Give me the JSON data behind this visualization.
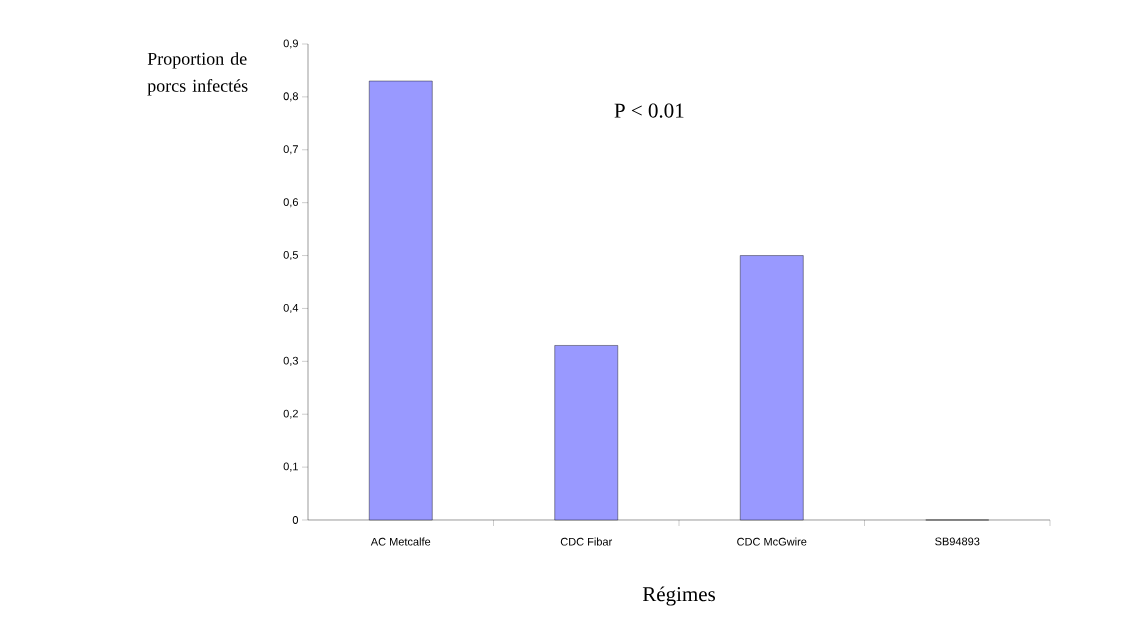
{
  "chart_data": {
    "type": "bar",
    "ylabel": "Proportion de porcs infectés",
    "xlabel": "Régimes",
    "annotations": [
      "P < 0.01"
    ],
    "categories": [
      "AC Metcalfe",
      "CDC Fibar",
      "CDC McGwire",
      "SB94893"
    ],
    "values": [
      0.83,
      0.33,
      0.5,
      0
    ],
    "color": "#9999ff",
    "ylim": [
      0,
      0.9
    ],
    "yticks": [
      0,
      {
        "value": 0.1,
        "label": "0,1"
      },
      {
        "value": 0.2,
        "label": "0,2"
      },
      {
        "value": 0.3,
        "label": "0,3"
      },
      {
        "value": 0.4,
        "label": "0,4"
      },
      {
        "value": 0.5,
        "label": "0,5"
      },
      {
        "value": 0.6,
        "label": "0,6"
      },
      {
        "value": 0.7,
        "label": "0,7"
      },
      {
        "value": 0.8,
        "label": "0,8"
      },
      {
        "value": 0.9,
        "label": "0,9"
      }
    ]
  }
}
